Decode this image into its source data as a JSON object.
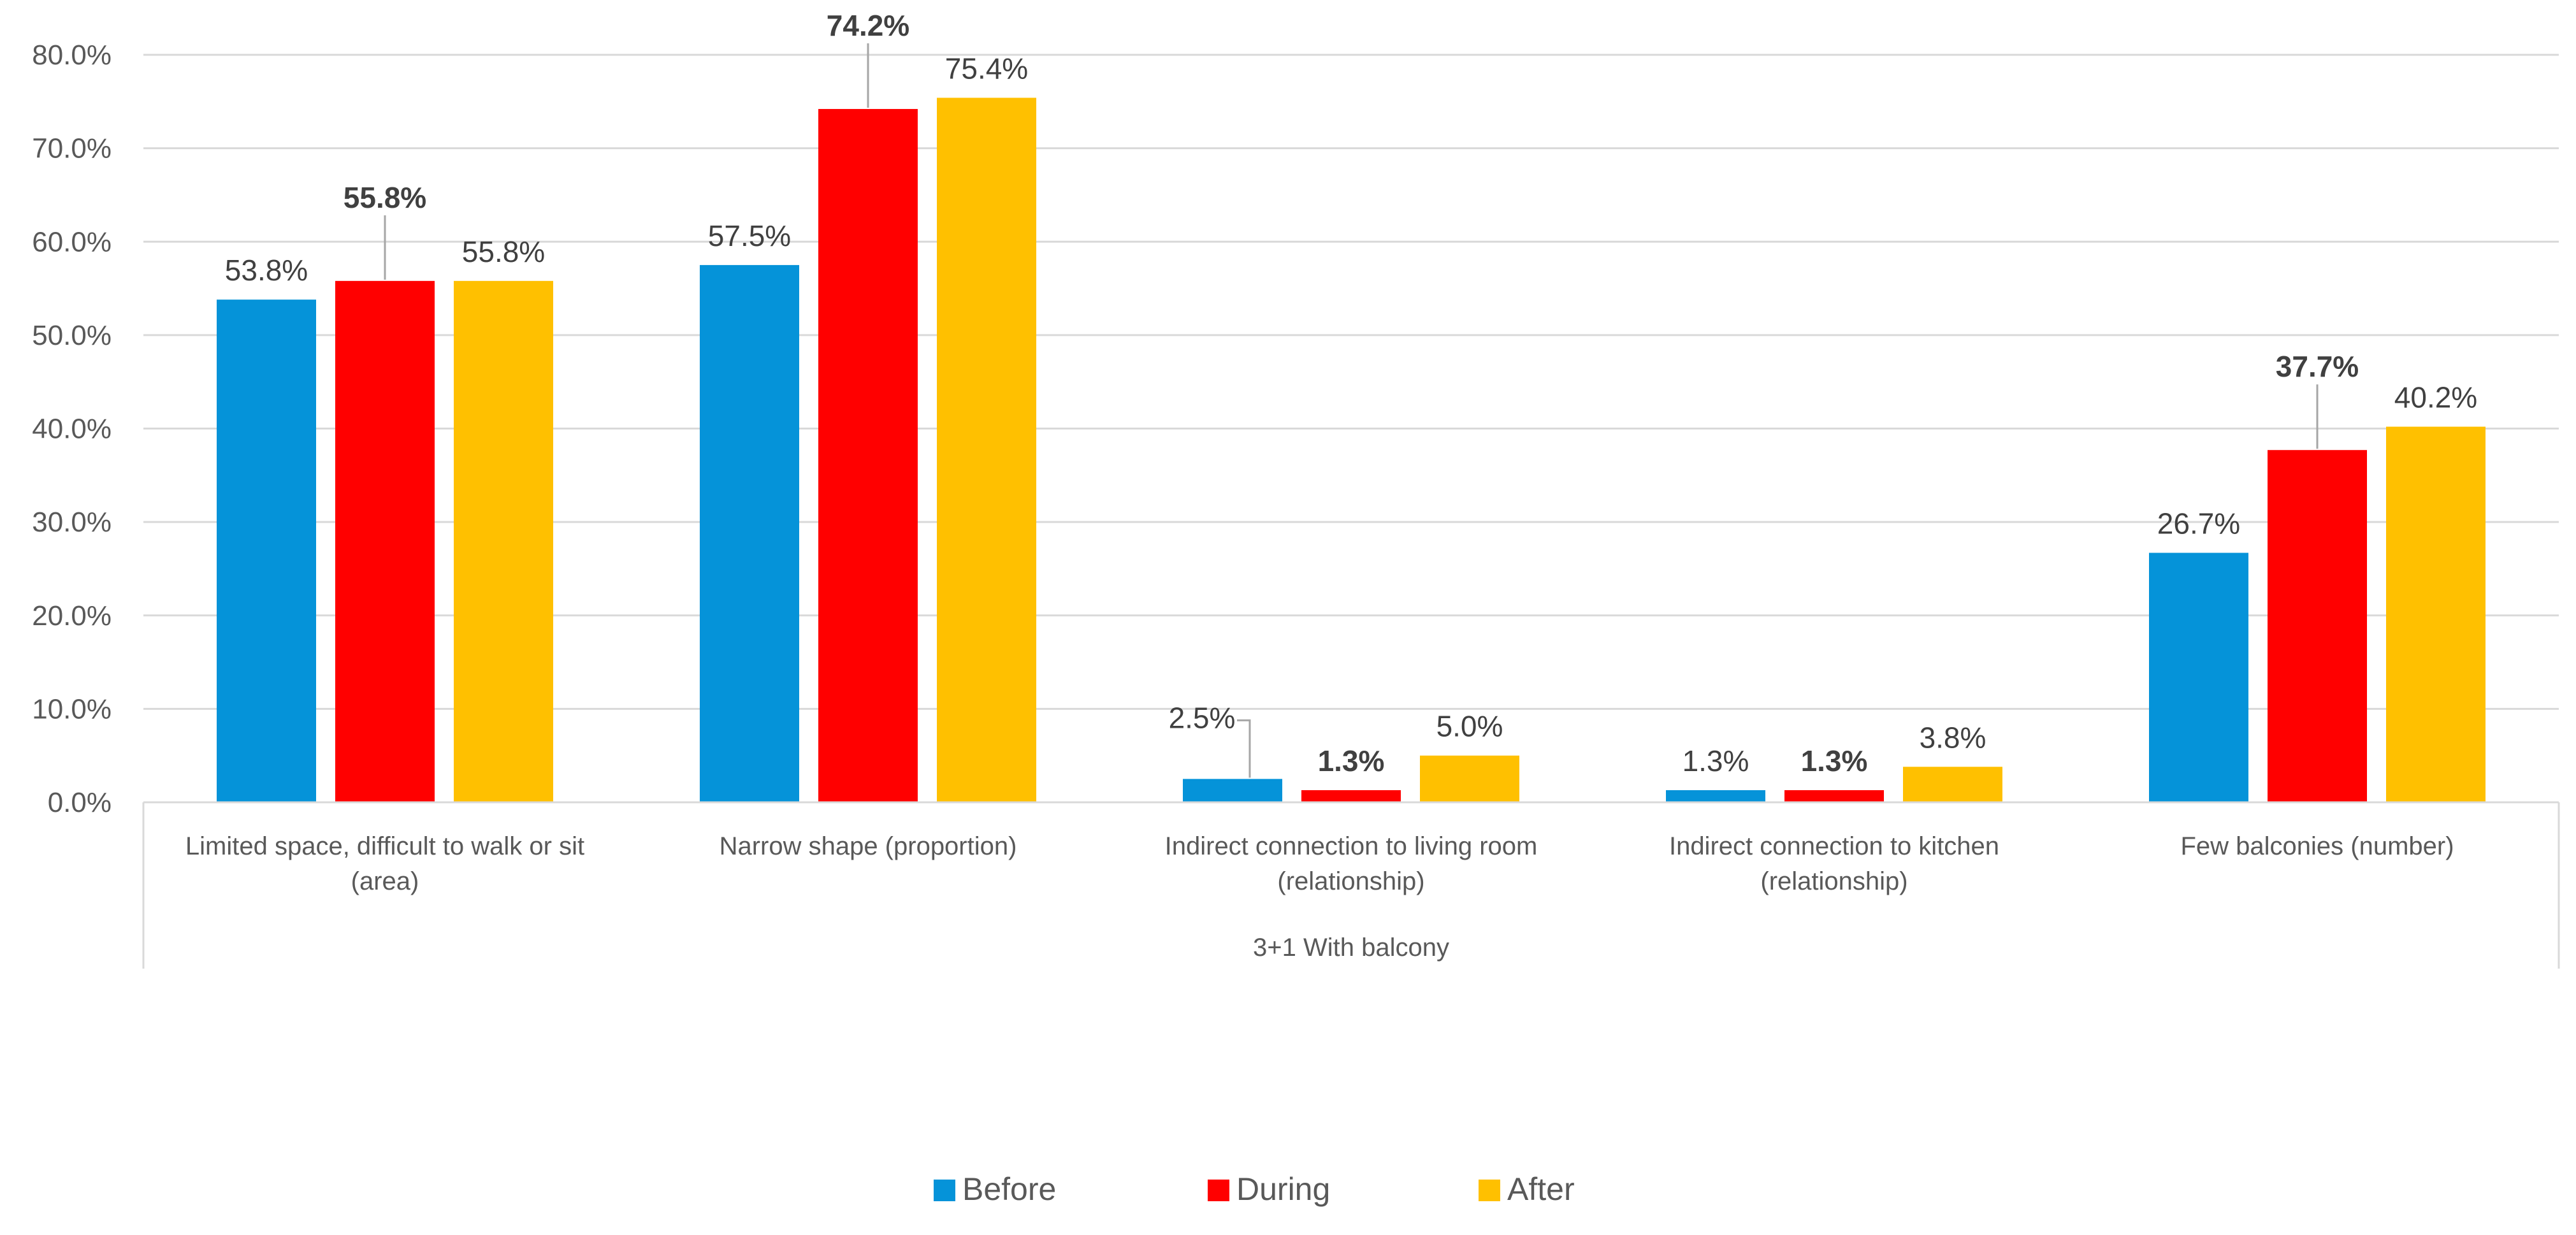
{
  "chart_data": {
    "type": "bar",
    "title": "",
    "group_label": "3+1 With balcony",
    "categories": [
      [
        "Limited space, difficult to walk or sit",
        "(area)"
      ],
      [
        "Narrow shape (proportion)"
      ],
      [
        "Indirect connection to living room",
        "(relationship)"
      ],
      [
        "Indirect connection to kitchen",
        "(relationship)"
      ],
      [
        "Few balconies (number)"
      ]
    ],
    "series": [
      {
        "name": "Before",
        "color": "#0593D9",
        "bold_labels": false,
        "values": [
          53.8,
          57.5,
          2.5,
          1.3,
          26.7
        ]
      },
      {
        "name": "During",
        "color": "#FF0000",
        "bold_labels": true,
        "values": [
          55.8,
          74.2,
          1.3,
          1.3,
          37.7
        ]
      },
      {
        "name": "After",
        "color": "#FFC000",
        "bold_labels": false,
        "values": [
          55.8,
          75.4,
          5.0,
          3.8,
          40.2
        ]
      }
    ],
    "value_format": "percent_1dp",
    "ylim": [
      0,
      80
    ],
    "yticks": [
      0,
      10,
      20,
      30,
      40,
      50,
      60,
      70,
      80
    ],
    "grid": true,
    "legend_position": "bottom-center"
  }
}
